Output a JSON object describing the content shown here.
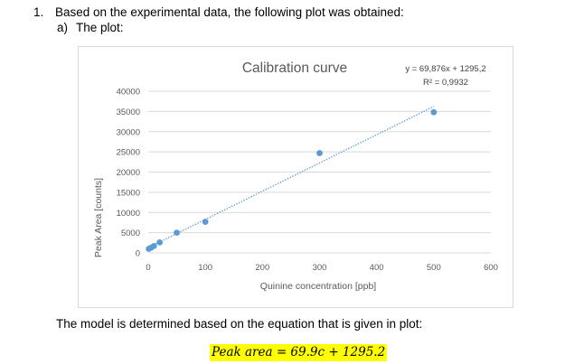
{
  "document": {
    "question_number": "1.",
    "question_text": "Based on the experimental data, the following plot was obtained:",
    "sub_label": "a)",
    "sub_text": "The plot:",
    "model_text": "The model is determined based on the equation that is given in plot:",
    "equation": "Peak area = 69.9c + 1295.2",
    "highlight_color": "#ffff00"
  },
  "chart_data": {
    "type": "scatter",
    "title": "Calibration curve",
    "xlabel": "Quinine concentration [ppb]",
    "ylabel": "Peak Area [counts]",
    "xlim": [
      0,
      600
    ],
    "ylim": [
      0,
      40000
    ],
    "x_ticks": [
      "0",
      "100",
      "200",
      "300",
      "400",
      "500",
      "600"
    ],
    "y_ticks": [
      "0",
      "5000",
      "10000",
      "15000",
      "20000",
      "25000",
      "30000",
      "35000",
      "40000"
    ],
    "grid": true,
    "point_color": "#5b9bd5",
    "series": [
      {
        "x": [
          1,
          5,
          10,
          20,
          50,
          100,
          300,
          500
        ],
        "y": [
          1000,
          1300,
          1700,
          2600,
          5000,
          7700,
          24700,
          34800
        ]
      }
    ],
    "trendline": {
      "style": "dotted",
      "slope": 69.876,
      "intercept": 1295.2,
      "equation_label": "y = 69,876x + 1295,2",
      "r2_label": "R² = 0,9932"
    }
  }
}
